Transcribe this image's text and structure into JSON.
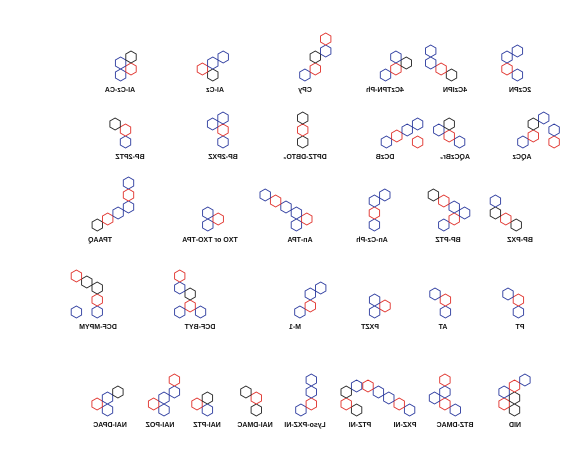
{
  "rows": [
    {
      "labels": [
        "AI-Cz-CA",
        "AI-Cz",
        "CPy",
        "4CzTPN-Ph",
        "4CzIPN",
        "2CzPN"
      ]
    },
    {
      "labels": [
        "BP-2PTZ",
        "BP-2PXZ",
        "DPTZ-DBTO₂",
        "DCzB",
        "AQCzBr₂",
        "AQCz"
      ]
    },
    {
      "labels": [
        "TPAAQ",
        "TXO or TXO-TPA",
        "An-TPA",
        "An-Cz-Ph",
        "BP-PTZ",
        "BP-PXZ"
      ]
    },
    {
      "labels": [
        "DCF-MPYM",
        "DCF-BYT",
        "M-1",
        "PXZT",
        "AT",
        "PT"
      ]
    },
    {
      "labels": [
        "NAI-DPAC",
        "NAI-POZ",
        "NAI-PTZ",
        "NAI-DMAC",
        "Lyso-PXZ-NI",
        "PTZ-NI",
        "PXZ-NI",
        "BTZ-DMAC",
        "NID"
      ]
    }
  ]
}
